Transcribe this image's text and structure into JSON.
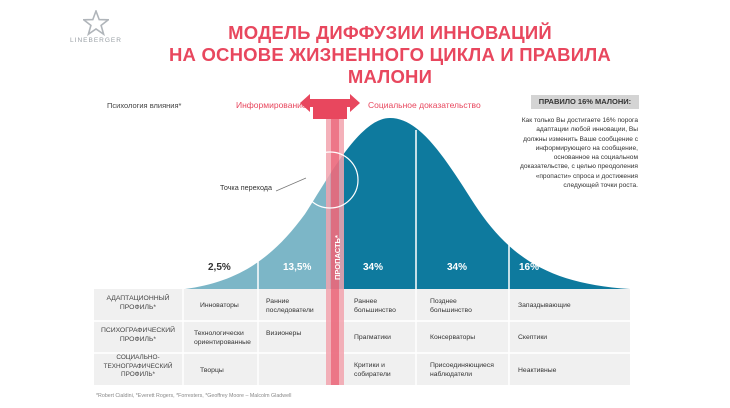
{
  "logo": {
    "name": "LINEBERGER"
  },
  "title": {
    "line1": "МОДЕЛЬ ДИФФУЗИИ ИННОВАЦИЙ",
    "line2": "НА ОСНОВЕ ЖИЗНЕННОГО ЦИКЛА И ПРАВИЛА МАЛОНИ"
  },
  "influence_label": "Психология влияния*",
  "arrow": {
    "left": "Информирование",
    "right": "Социальное доказательство"
  },
  "malone": {
    "header": "ПРАВИЛО 16% МАЛОНИ:",
    "text": "Как только Вы достигаете 16% порога адаптации любой инновации, Вы должны изменить Ваше сообщение с информирующего на сообщение, основанное на социальном доказательстве, с целью преодоления «пропасти» спроса и достижения следующей точки роста."
  },
  "transition_label": "Точка перехода",
  "gap_label": "ПРОПАСТЬ*",
  "segments": [
    {
      "percent": "2,5%"
    },
    {
      "percent": "13,5%"
    },
    {
      "percent": "34%"
    },
    {
      "percent": "34%"
    },
    {
      "percent": "16%"
    }
  ],
  "rows": [
    {
      "label": "АДАПТАЦИОННЫЙ ПРОФИЛЬ*",
      "cells": [
        "Инноваторы",
        "Ранние последователи",
        "Раннее большинство",
        "Позднее большинство",
        "Запаздывающие"
      ]
    },
    {
      "label": "ПСИХОГРАФИЧЕСКИЙ ПРОФИЛЬ*",
      "cells": [
        "Технологически ориентированные",
        "Визионеры",
        "Прагматики",
        "Консерваторы",
        "Скептики"
      ]
    },
    {
      "label": "СОЦИАЛЬНО-ТЕХНОГРАФИЧЕСКИЙ ПРОФИЛЬ*",
      "cells": [
        "Творцы",
        "",
        "Критики и собиратели",
        "Присоединяющиеся наблюдатели",
        "Неактивные"
      ]
    }
  ],
  "footnote": "*Robert Cialdini, *Everett Rogers, *Forresters, *Geoffrey Moore – Malcolm Gladwell",
  "colors": {
    "accent": "#e8475e",
    "bell_light": "#7cb6c7",
    "bell_dark": "#0e7a9e",
    "table_bg": "#f0f0f0",
    "stripe": "#f2a3ae"
  }
}
